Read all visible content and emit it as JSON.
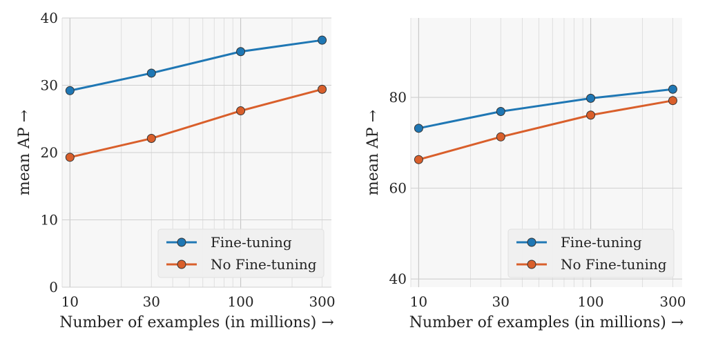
{
  "chart_data": [
    {
      "type": "line",
      "xscale": "log",
      "xlabel": "Number of examples (in millions) →",
      "ylabel": "mean AP →",
      "x": [
        10,
        30,
        100,
        300
      ],
      "xticks": [
        "10",
        "30",
        "100",
        "300"
      ],
      "xlim": [
        9,
        340
      ],
      "ylim": [
        0,
        40
      ],
      "yticks": [
        "0",
        "10",
        "20",
        "30",
        "40"
      ],
      "ytick_values": [
        0,
        10,
        20,
        30,
        40
      ],
      "series": [
        {
          "name": "Fine-tuning",
          "values": [
            29.2,
            31.8,
            35.0,
            36.7
          ],
          "color": "#1f77b4"
        },
        {
          "name": "No Fine-tuning",
          "values": [
            19.3,
            22.1,
            26.2,
            29.4
          ],
          "color": "#d95f2b"
        }
      ],
      "legend": "bottom-right",
      "grid": true
    },
    {
      "type": "line",
      "xscale": "log",
      "xlabel": "Number of examples (in millions) →",
      "ylabel": "mean AP →",
      "x": [
        10,
        30,
        100,
        300
      ],
      "xticks": [
        "10",
        "30",
        "100",
        "300"
      ],
      "xlim": [
        9,
        340
      ],
      "ylim": [
        38.2,
        97.5
      ],
      "yticks": [
        "40",
        "60",
        "80"
      ],
      "ytick_values": [
        40,
        60,
        80
      ],
      "series": [
        {
          "name": "Fine-tuning",
          "values": [
            73.2,
            76.9,
            79.8,
            81.8
          ],
          "color": "#1f77b4"
        },
        {
          "name": "No Fine-tuning",
          "values": [
            66.3,
            71.3,
            76.1,
            79.3
          ],
          "color": "#d95f2b"
        }
      ],
      "legend": "bottom-right",
      "grid": true
    }
  ]
}
